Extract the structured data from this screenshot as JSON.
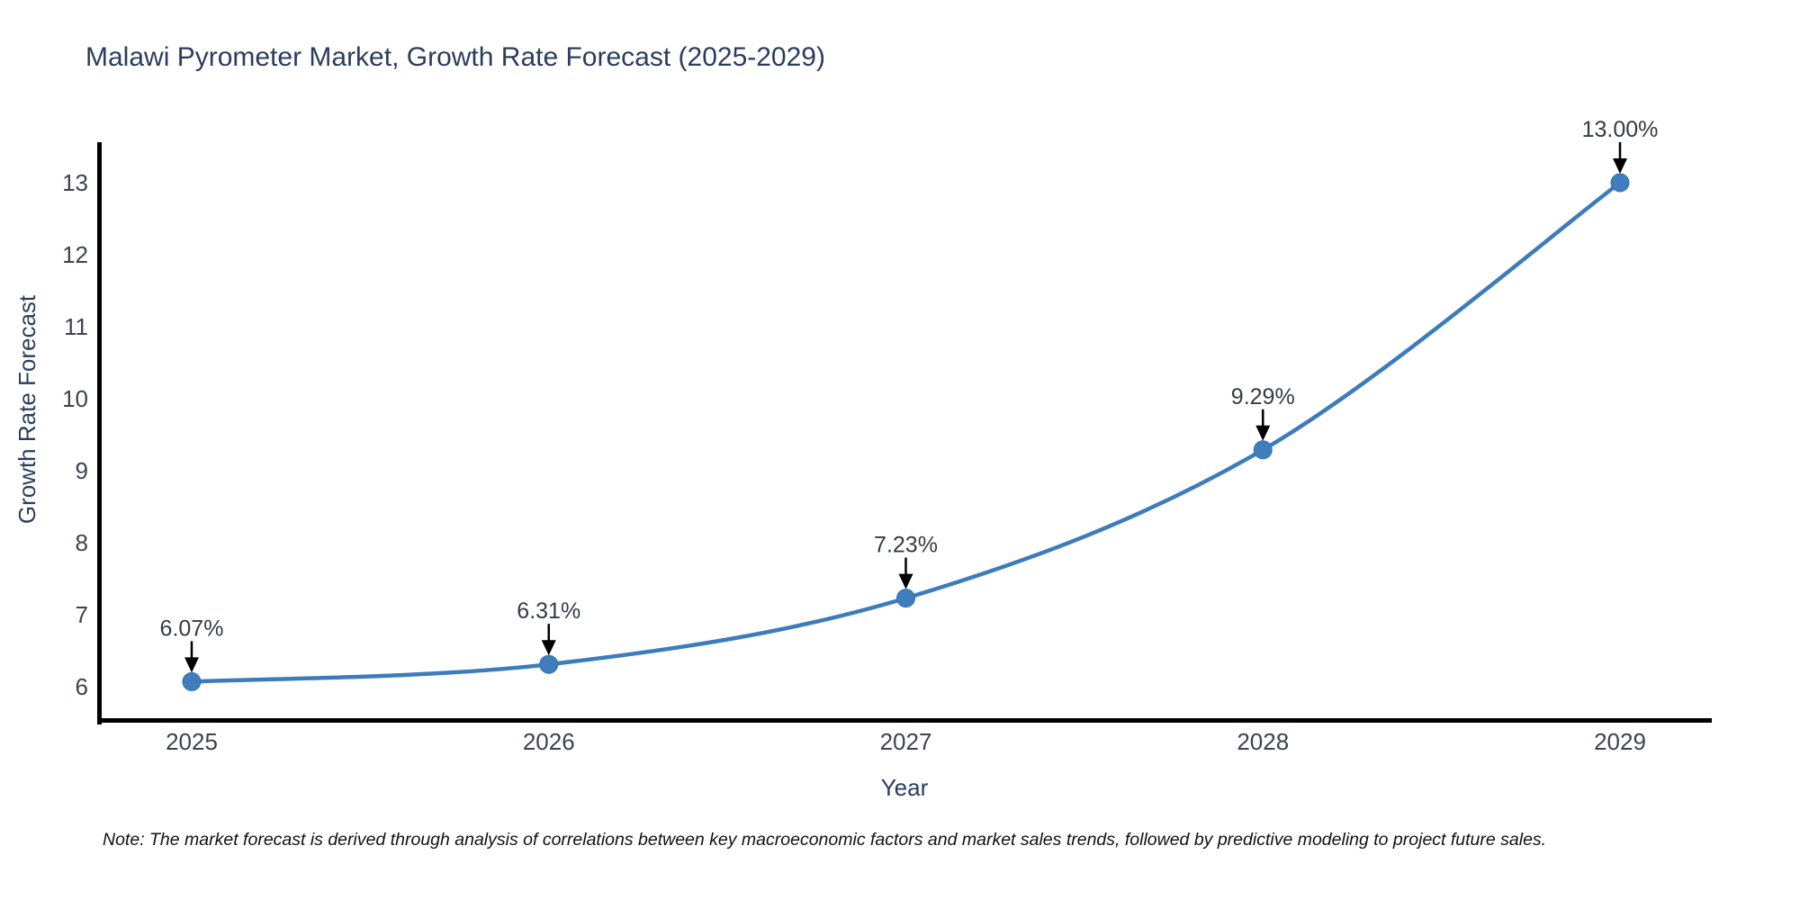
{
  "note": "Note: The market forecast is derived through analysis of correlations between key macroeconomic factors and market sales trends, followed by predictive modeling to project future sales.",
  "chart_data": {
    "type": "line",
    "title": "Malawi Pyrometer Market, Growth Rate Forecast (2025-2029)",
    "xlabel": "Year",
    "ylabel": "Growth Rate Forecast",
    "x": [
      2025,
      2026,
      2027,
      2028,
      2029
    ],
    "x_tick_labels": [
      "2025",
      "2026",
      "2027",
      "2028",
      "2029"
    ],
    "values": [
      6.07,
      6.31,
      7.23,
      9.29,
      13.0
    ],
    "point_labels": [
      "6.07%",
      "6.31%",
      "7.23%",
      "9.29%",
      "13.00%"
    ],
    "y_ticks": [
      6,
      7,
      8,
      9,
      10,
      11,
      12,
      13
    ],
    "ylim": [
      5.5,
      13.55
    ],
    "line_shape": "spline",
    "grid": false,
    "legend_visible": false,
    "annotation_style": "value-label-with-down-arrow",
    "colors": {
      "line": "#3d7cba",
      "marker": "#3f7dbc",
      "marker_edge": "#3171ad",
      "arrow": "#000000",
      "axis": "#000000",
      "title_text": "#2b3d5c",
      "tick_text": "#3b4350",
      "background": "#ffffff"
    }
  }
}
